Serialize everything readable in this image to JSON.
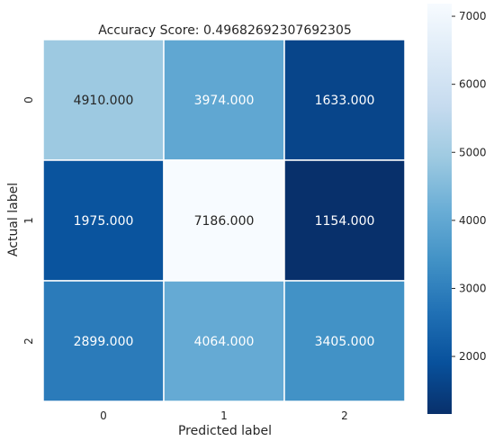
{
  "chart_data": {
    "type": "heatmap",
    "title": "Accuracy Score: 0.49682692307692305",
    "xlabel": "Predicted label",
    "ylabel": "Actual label",
    "x_categories": [
      "0",
      "1",
      "2"
    ],
    "y_categories": [
      "0",
      "1",
      "2"
    ],
    "values": [
      [
        4910,
        3974,
        1633
      ],
      [
        1975,
        7186,
        1154
      ],
      [
        2899,
        4064,
        3405
      ]
    ],
    "cell_labels": [
      [
        "4910.000",
        "3974.000",
        "1633.000"
      ],
      [
        "1975.000",
        "7186.000",
        "1154.000"
      ],
      [
        "2899.000",
        "4064.000",
        "3405.000"
      ]
    ],
    "colormap": "Blues_r",
    "colorbar": {
      "vmin": 1154,
      "vmax": 7186,
      "ticks": [
        2000,
        3000,
        4000,
        5000,
        6000,
        7000
      ],
      "tick_labels": [
        "2000",
        "3000",
        "4000",
        "5000",
        "6000",
        "7000"
      ]
    },
    "grid": false,
    "colors": {
      "cell_border": "#ffffff",
      "text_dark": "#262626",
      "text_light": "#ffffff"
    }
  }
}
